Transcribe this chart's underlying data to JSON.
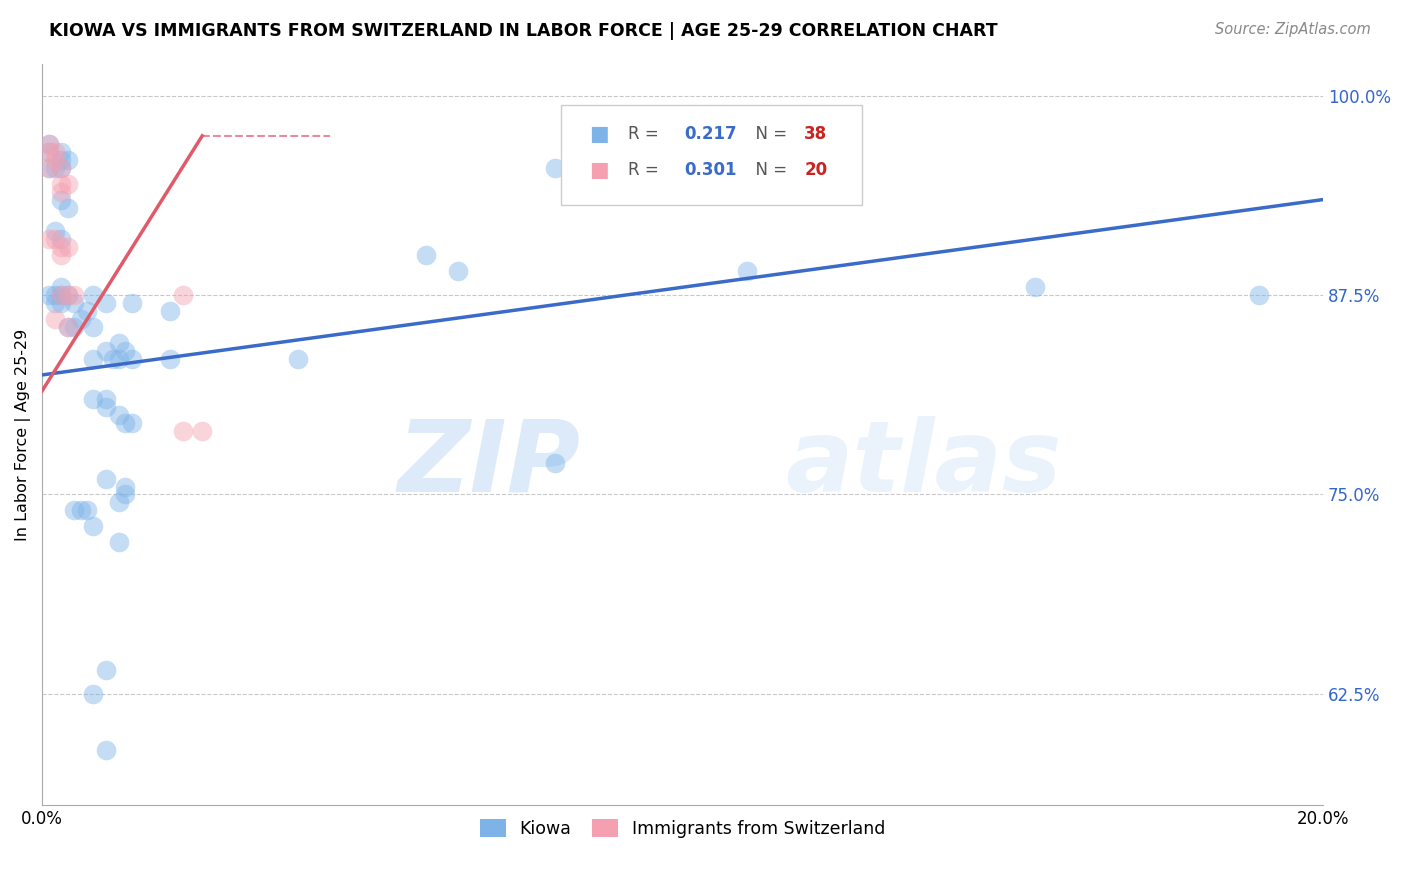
{
  "title": "KIOWA VS IMMIGRANTS FROM SWITZERLAND IN LABOR FORCE | AGE 25-29 CORRELATION CHART",
  "source": "Source: ZipAtlas.com",
  "ylabel": "In Labor Force | Age 25-29",
  "xlim": [
    0.0,
    0.2
  ],
  "ylim": [
    0.555,
    1.02
  ],
  "yticks": [
    0.625,
    0.75,
    0.875,
    1.0
  ],
  "ytick_labels": [
    "62.5%",
    "75.0%",
    "87.5%",
    "100.0%"
  ],
  "xticks": [
    0.0,
    0.05,
    0.1,
    0.15,
    0.2
  ],
  "xtick_labels": [
    "0.0%",
    "",
    "",
    "",
    "20.0%"
  ],
  "blue_line": [
    [
      0.0,
      0.825
    ],
    [
      0.2,
      0.935
    ]
  ],
  "pink_line_solid": [
    [
      0.0,
      0.815
    ],
    [
      0.025,
      0.975
    ]
  ],
  "pink_line_dashed": [
    [
      0.025,
      0.975
    ],
    [
      0.045,
      0.975
    ]
  ],
  "kiowa_scatter": [
    [
      0.001,
      0.955
    ],
    [
      0.001,
      0.965
    ],
    [
      0.001,
      0.97
    ],
    [
      0.002,
      0.955
    ],
    [
      0.003,
      0.96
    ],
    [
      0.003,
      0.965
    ],
    [
      0.003,
      0.955
    ],
    [
      0.004,
      0.96
    ],
    [
      0.003,
      0.935
    ],
    [
      0.004,
      0.93
    ],
    [
      0.002,
      0.915
    ],
    [
      0.003,
      0.91
    ],
    [
      0.001,
      0.875
    ],
    [
      0.002,
      0.875
    ],
    [
      0.002,
      0.87
    ],
    [
      0.003,
      0.87
    ],
    [
      0.003,
      0.875
    ],
    [
      0.003,
      0.88
    ],
    [
      0.004,
      0.875
    ],
    [
      0.005,
      0.87
    ],
    [
      0.004,
      0.855
    ],
    [
      0.005,
      0.855
    ],
    [
      0.006,
      0.86
    ],
    [
      0.007,
      0.865
    ],
    [
      0.008,
      0.855
    ],
    [
      0.008,
      0.875
    ],
    [
      0.01,
      0.87
    ],
    [
      0.012,
      0.845
    ],
    [
      0.014,
      0.87
    ],
    [
      0.02,
      0.865
    ],
    [
      0.06,
      0.9
    ],
    [
      0.065,
      0.89
    ],
    [
      0.11,
      0.89
    ],
    [
      0.155,
      0.88
    ],
    [
      0.19,
      0.875
    ],
    [
      0.008,
      0.835
    ],
    [
      0.01,
      0.84
    ],
    [
      0.011,
      0.835
    ],
    [
      0.012,
      0.835
    ],
    [
      0.013,
      0.84
    ],
    [
      0.014,
      0.835
    ],
    [
      0.02,
      0.835
    ],
    [
      0.04,
      0.835
    ],
    [
      0.08,
      0.955
    ],
    [
      0.095,
      0.965
    ],
    [
      0.008,
      0.81
    ],
    [
      0.01,
      0.81
    ],
    [
      0.01,
      0.805
    ],
    [
      0.012,
      0.8
    ],
    [
      0.013,
      0.795
    ],
    [
      0.014,
      0.795
    ],
    [
      0.01,
      0.76
    ],
    [
      0.013,
      0.755
    ],
    [
      0.012,
      0.745
    ],
    [
      0.013,
      0.75
    ],
    [
      0.005,
      0.74
    ],
    [
      0.006,
      0.74
    ],
    [
      0.007,
      0.74
    ],
    [
      0.008,
      0.73
    ],
    [
      0.08,
      0.77
    ],
    [
      0.012,
      0.72
    ],
    [
      0.01,
      0.64
    ],
    [
      0.008,
      0.625
    ],
    [
      0.01,
      0.59
    ]
  ],
  "swiss_scatter": [
    [
      0.001,
      0.97
    ],
    [
      0.001,
      0.965
    ],
    [
      0.001,
      0.955
    ],
    [
      0.002,
      0.965
    ],
    [
      0.002,
      0.96
    ],
    [
      0.003,
      0.955
    ],
    [
      0.003,
      0.945
    ],
    [
      0.003,
      0.94
    ],
    [
      0.004,
      0.945
    ],
    [
      0.001,
      0.91
    ],
    [
      0.002,
      0.91
    ],
    [
      0.003,
      0.9
    ],
    [
      0.003,
      0.905
    ],
    [
      0.004,
      0.905
    ],
    [
      0.003,
      0.875
    ],
    [
      0.004,
      0.875
    ],
    [
      0.005,
      0.875
    ],
    [
      0.002,
      0.86
    ],
    [
      0.004,
      0.855
    ],
    [
      0.022,
      0.875
    ],
    [
      0.022,
      0.79
    ],
    [
      0.025,
      0.79
    ]
  ],
  "blue_color": "#7EB3E8",
  "pink_color": "#F4A0B0",
  "blue_line_color": "#3A6BC9",
  "pink_line_color": "#E05A6A",
  "background_color": "#FFFFFF",
  "watermark_zip": "ZIP",
  "watermark_atlas": "atlas"
}
